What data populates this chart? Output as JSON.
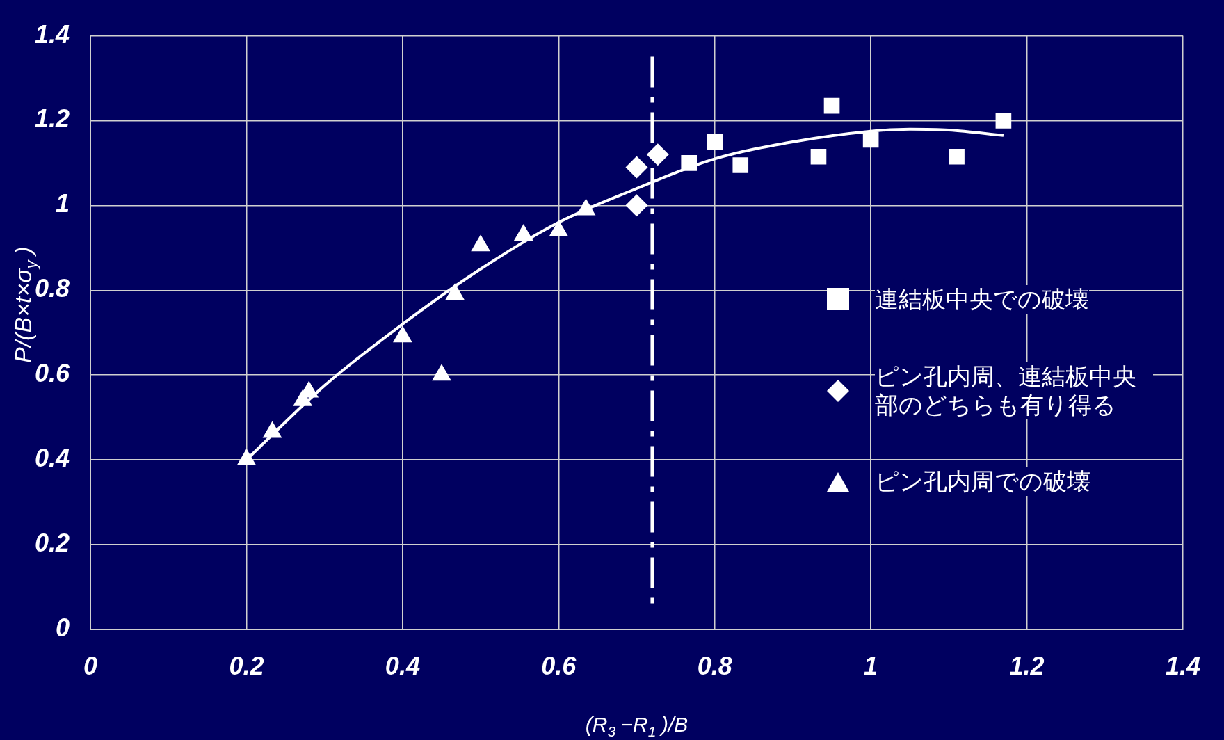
{
  "chart_data": {
    "type": "scatter",
    "xlabel": "(R$_{3}$−R$_{1}$)/B",
    "ylabel": "P/(B×t×σ$_{y}$)",
    "xlim": [
      0,
      1.4
    ],
    "xticks": [
      0,
      0.2,
      0.4,
      0.6,
      0.8,
      1,
      1.2,
      1.4
    ],
    "ylim": [
      0,
      1.4
    ],
    "yticks": [
      0,
      0.2,
      0.4,
      0.6,
      0.8,
      1,
      1.2,
      1.4
    ],
    "grid": true,
    "legend": "right",
    "series": [
      {
        "name": "連結板中央での破壊",
        "color": "#ffffff",
        "marker": "square",
        "x": [
          0.767,
          0.8,
          0.833,
          0.933,
          0.95,
          1.0,
          1.11,
          1.17
        ],
        "values": [
          1.1,
          1.15,
          1.095,
          1.115,
          1.235,
          1.155,
          1.115,
          1.2
        ]
      },
      {
        "name": "ピン孔内周、連結板中央部のどちらも有り得る",
        "color": "#ffffff",
        "marker": "diamond",
        "x": [
          0.7,
          0.727,
          0.7
        ],
        "values": [
          1.09,
          1.12,
          1.0
        ]
      },
      {
        "name": "ピン孔内周での破壊",
        "color": "#ffffff",
        "marker": "triangle",
        "x": [
          0.2,
          0.233,
          0.272,
          0.28,
          0.4,
          0.45,
          0.467,
          0.5,
          0.555,
          0.6,
          0.635
        ],
        "values": [
          0.4,
          0.465,
          0.54,
          0.56,
          0.69,
          0.6,
          0.79,
          0.905,
          0.93,
          0.94,
          0.99
        ]
      },
      {
        "type": "line",
        "color": "#ffffff",
        "marker": "none",
        "line_style": "solid",
        "x": [
          0.2,
          0.3,
          0.4,
          0.5,
          0.6,
          0.7,
          0.8,
          0.9,
          1.0,
          1.05,
          1.1,
          1.17
        ],
        "values": [
          0.4,
          0.575,
          0.72,
          0.85,
          0.96,
          1.04,
          1.11,
          1.15,
          1.175,
          1.18,
          1.178,
          1.165
        ]
      }
    ],
    "ref_lines": [
      {
        "axis": "x",
        "value": 0.72,
        "color": "#ffffff",
        "line_style": "dashdot"
      }
    ]
  }
}
